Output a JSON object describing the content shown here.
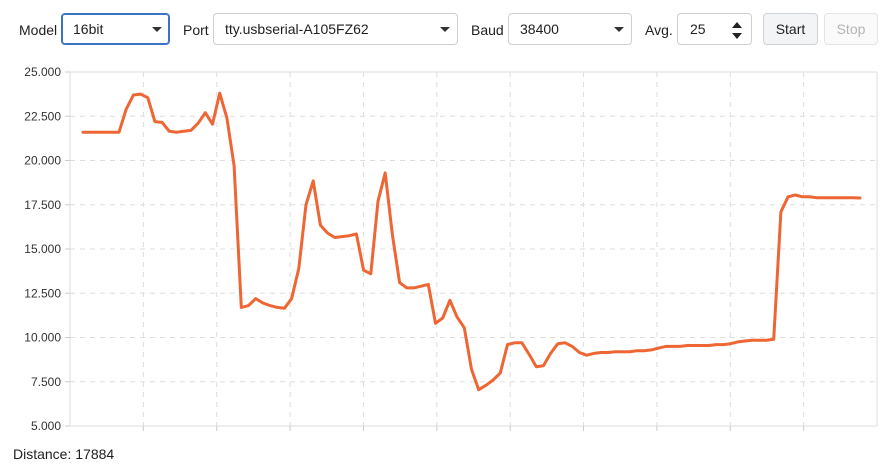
{
  "toolbar": {
    "model_label": "Model",
    "model_value": "16bit",
    "port_label": "Port",
    "port_value": "tty.usbserial-A105FZ62",
    "baud_label": "Baud",
    "baud_value": "38400",
    "avg_label": "Avg.",
    "avg_value": "25",
    "start_label": "Start",
    "stop_label": "Stop"
  },
  "status": {
    "distance_label": "Distance:",
    "distance_value": "17884"
  },
  "colors": {
    "line": "#ee6633",
    "grid": "#dddddd",
    "focus_border": "#3b73c4"
  },
  "chart_data": {
    "type": "line",
    "ylim": [
      5000,
      25000
    ],
    "ytick_labels": [
      "5.000",
      "7.500",
      "10.000",
      "12.500",
      "15.000",
      "17.500",
      "20.000",
      "22.500",
      "25.000"
    ],
    "ytick_values": [
      5000,
      7500,
      10000,
      12500,
      15000,
      17500,
      20000,
      22500,
      25000
    ],
    "x_gridlines": 11,
    "grid": true,
    "series": [
      {
        "values": [
          21600,
          21600,
          21600,
          21600,
          21600,
          21600,
          22900,
          23700,
          23750,
          23550,
          22200,
          22150,
          21650,
          21600,
          21650,
          21700,
          22100,
          22700,
          22050,
          23800,
          22400,
          19700,
          11700,
          11800,
          12200,
          11950,
          11800,
          11700,
          11650,
          12200,
          13900,
          17500,
          18850,
          16350,
          15900,
          15650,
          15700,
          15750,
          15850,
          13800,
          13600,
          17700,
          19300,
          15800,
          13100,
          12800,
          12800,
          12900,
          13000,
          10800,
          11100,
          12100,
          11150,
          10550,
          8200,
          7050,
          7300,
          7600,
          8000,
          9600,
          9700,
          9700,
          9050,
          8350,
          8400,
          9100,
          9650,
          9700,
          9500,
          9150,
          9000,
          9100,
          9150,
          9150,
          9200,
          9200,
          9200,
          9250,
          9250,
          9300,
          9400,
          9500,
          9500,
          9500,
          9550,
          9550,
          9550,
          9550,
          9600,
          9600,
          9650,
          9750,
          9800,
          9850,
          9850,
          9850,
          9900,
          17100,
          17950,
          18050,
          17950,
          17950,
          17900,
          17900,
          17900,
          17900,
          17900,
          17900,
          17884
        ]
      }
    ]
  }
}
